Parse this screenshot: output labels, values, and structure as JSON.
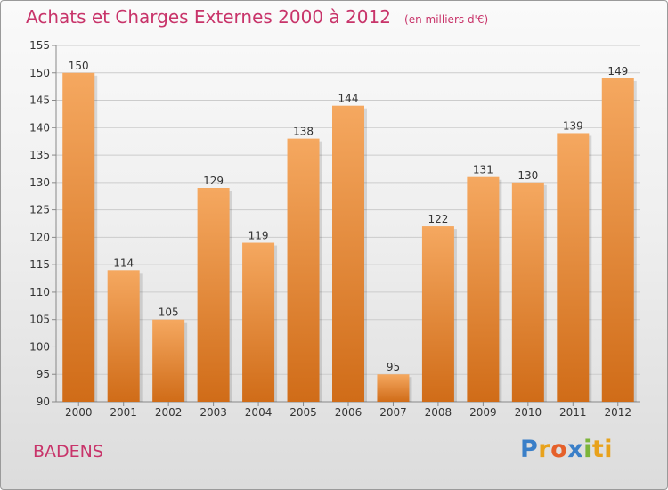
{
  "header": {
    "title": "Achats et Charges Externes 2000 à 2012",
    "unit": "(en milliers d'€)"
  },
  "footer": {
    "place": "BADENS",
    "brand_letters": [
      "P",
      "r",
      "o",
      "x",
      "i",
      "ti"
    ]
  },
  "colors": {
    "title": "#c8346a",
    "bar_light": "#f5a860",
    "bar_dark": "#d06c18",
    "grid": "#cccccc"
  },
  "chart_data": {
    "type": "bar",
    "categories": [
      "2000",
      "2001",
      "2002",
      "2003",
      "2004",
      "2005",
      "2006",
      "2007",
      "2008",
      "2009",
      "2010",
      "2011",
      "2012"
    ],
    "values": [
      150,
      114,
      105,
      129,
      119,
      138,
      144,
      95,
      122,
      131,
      130,
      139,
      149
    ],
    "ylim": [
      90,
      155
    ],
    "yticks": [
      90,
      95,
      100,
      105,
      110,
      115,
      120,
      125,
      130,
      135,
      140,
      145,
      150,
      155
    ],
    "grid": true,
    "data_labels": true
  }
}
